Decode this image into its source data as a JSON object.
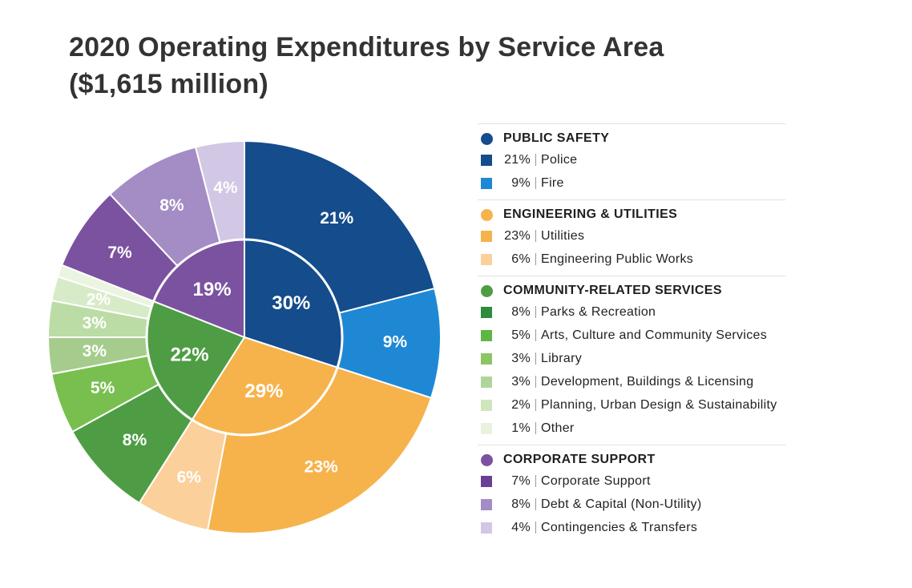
{
  "title_line1": "2020 Operating Expenditures by Service Area",
  "title_line2": "($1,615 million)",
  "chart_data": {
    "type": "pie",
    "inner_ring": [
      {
        "label": "30%",
        "value": 30,
        "color": "#144c8c"
      },
      {
        "label": "29%",
        "value": 29,
        "color": "#f6b34c"
      },
      {
        "label": "22%",
        "value": 22,
        "color": "#4e9d44"
      },
      {
        "label": "19%",
        "value": 19,
        "color": "#7b52a0"
      }
    ],
    "outer_ring": [
      {
        "label": "21%",
        "value": 21,
        "color": "#144c8c",
        "text": "#ffffff"
      },
      {
        "label": "9%",
        "value": 9,
        "color": "#1f88d4",
        "text": "#ffffff"
      },
      {
        "label": "23%",
        "value": 23,
        "color": "#f6b34c",
        "text": "#ffffff"
      },
      {
        "label": "6%",
        "value": 6,
        "color": "#fbd09a",
        "text": "#ffffff"
      },
      {
        "label": "8%",
        "value": 8,
        "color": "#4e9d44",
        "text": "#ffffff"
      },
      {
        "label": "5%",
        "value": 5,
        "color": "#79bf4f",
        "text": "#ffffff"
      },
      {
        "label": "3%",
        "value": 3,
        "color": "#a5cc8c",
        "text": "#ffffff"
      },
      {
        "label": "3%",
        "value": 3,
        "color": "#bcdca6",
        "text": "#ffffff"
      },
      {
        "label": "2%",
        "value": 2,
        "color": "#d8ebc8",
        "text": "#ffffff"
      },
      {
        "label": "",
        "value": 1,
        "color": "#eaf4e0",
        "text": "#ffffff"
      },
      {
        "label": "7%",
        "value": 7,
        "color": "#7b52a0",
        "text": "#ffffff"
      },
      {
        "label": "8%",
        "value": 8,
        "color": "#a48cc5",
        "text": "#ffffff"
      },
      {
        "label": "4%",
        "value": 4,
        "color": "#d2c7e4",
        "text": "#ffffff"
      }
    ]
  },
  "legend": {
    "groups": [
      {
        "name": "PUBLIC SAFETY",
        "color": "#144c8c",
        "items": [
          {
            "pct": "21%",
            "label": "Police",
            "color": "#144c8c"
          },
          {
            "pct": "9%",
            "label": "Fire",
            "color": "#1f88d4"
          }
        ]
      },
      {
        "name": "ENGINEERING & UTILITIES",
        "color": "#f6b34c",
        "items": [
          {
            "pct": "23%",
            "label": "Utilities",
            "color": "#f6b34c"
          },
          {
            "pct": "6%",
            "label": "Engineering Public Works",
            "color": "#fbd09a"
          }
        ]
      },
      {
        "name": "COMMUNITY-RELATED SERVICES",
        "color": "#4e9d44",
        "items": [
          {
            "pct": "8%",
            "label": "Parks & Recreation",
            "color": "#2f8b3d"
          },
          {
            "pct": "5%",
            "label": "Arts, Culture and Community Services",
            "color": "#5fb546"
          },
          {
            "pct": "3%",
            "label": "Library",
            "color": "#8cc466"
          },
          {
            "pct": "3%",
            "label": "Development, Buildings & Licensing",
            "color": "#afd69a"
          },
          {
            "pct": "2%",
            "label": "Planning, Urban Design & Sustainability",
            "color": "#cfe6bd"
          },
          {
            "pct": "1%",
            "label": "Other",
            "color": "#e8f3de"
          }
        ]
      },
      {
        "name": "CORPORATE SUPPORT",
        "color": "#7b52a0",
        "items": [
          {
            "pct": "7%",
            "label": "Corporate Support",
            "color": "#6a3f96"
          },
          {
            "pct": "8%",
            "label": "Debt & Capital (Non-Utility)",
            "color": "#a48cc5"
          },
          {
            "pct": "4%",
            "label": "Contingencies & Transfers",
            "color": "#d2c7e4"
          }
        ]
      }
    ]
  }
}
